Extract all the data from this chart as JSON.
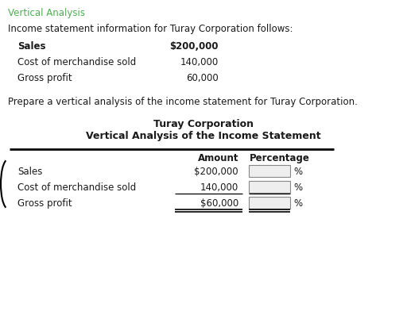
{
  "title_top": "Vertical Analysis",
  "title_top_color": "#4CAF50",
  "intro_text": "Income statement information for Turay Corporation follows:",
  "items_intro": [
    {
      "label": "Sales",
      "value": "$200,000",
      "bold": true
    },
    {
      "label": "Cost of merchandise sold",
      "value": "140,000",
      "bold": false
    },
    {
      "label": "Gross profit",
      "value": "60,000",
      "bold": false
    }
  ],
  "prepare_text": "Prepare a vertical analysis of the income statement for Turay Corporation.",
  "corp_title": "Turay Corporation",
  "stmt_title": "Vertical Analysis of the Income Statement",
  "col_headers": [
    "Amount",
    "Percentage"
  ],
  "table_rows": [
    {
      "label": "Sales",
      "amount": "$200,000"
    },
    {
      "label": "Cost of merchandise sold",
      "amount": "140,000"
    },
    {
      "label": "Gross profit",
      "amount": "$60,000"
    }
  ],
  "bg_color": "#ffffff",
  "text_color": "#1a1a1a",
  "green_color": "#4CAF50",
  "font_size": 8.5,
  "font_size_title": 9.0,
  "font_family": "DejaVu Sans"
}
